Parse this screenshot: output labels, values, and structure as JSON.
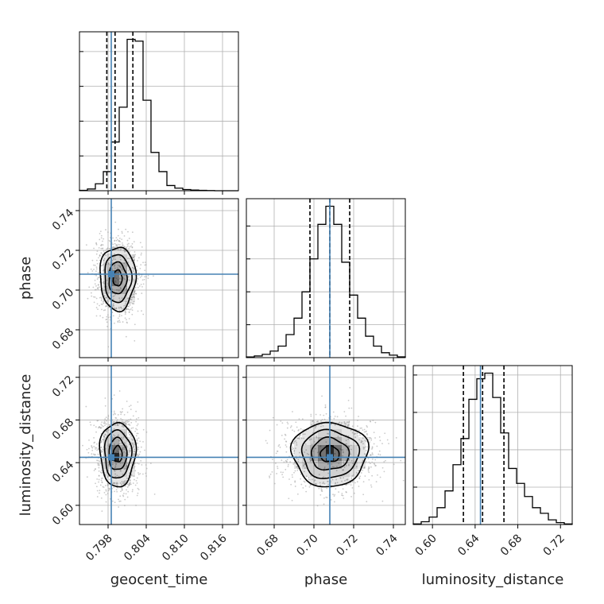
{
  "chart_data": {
    "type": "corner",
    "parameters": [
      {
        "name": "geocent_time",
        "label": "geocent_time",
        "range": [
          0.7935,
          0.8185
        ],
        "ticks": [
          0.798,
          0.804,
          0.81,
          0.816
        ],
        "tick_labels": [
          "0.798",
          "0.804",
          "0.810",
          "0.816"
        ],
        "truth": 0.7985,
        "quantiles": [
          0.7978,
          0.7991,
          0.8019
        ],
        "hist": [
          0.2,
          1,
          4,
          11,
          28,
          48,
          87,
          86,
          52,
          22,
          11,
          3,
          1.5,
          0.7,
          0.4,
          0.2,
          0.1,
          0,
          0,
          0
        ]
      },
      {
        "name": "phase",
        "label": "phase",
        "range": [
          0.666,
          0.746
        ],
        "ticks": [
          0.68,
          0.7,
          0.72,
          0.74
        ],
        "tick_labels": [
          "0.68",
          "0.70",
          "0.72",
          "0.74"
        ],
        "truth": 0.708,
        "quantiles": [
          0.698,
          0.708,
          0.718
        ],
        "hist": [
          0.4,
          1,
          2,
          4,
          7,
          14,
          24,
          40,
          60,
          81,
          92,
          81,
          58,
          38,
          24,
          13,
          7,
          3,
          1.5,
          0.5
        ]
      },
      {
        "name": "luminosity_distance",
        "label": "luminosity_distance",
        "range": [
          0.582,
          0.731
        ],
        "ticks": [
          0.6,
          0.64,
          0.68,
          0.72
        ],
        "tick_labels": [
          "0.60",
          "0.64",
          "0.68",
          "0.72"
        ],
        "truth": 0.645,
        "quantiles": [
          0.629,
          0.647,
          0.667
        ],
        "hist": [
          0.3,
          1.5,
          4,
          9,
          18,
          32,
          46,
          67,
          78,
          81,
          68,
          49,
          30,
          22,
          15,
          9,
          6,
          2.5,
          1,
          0.3
        ]
      }
    ],
    "pairs": [
      {
        "x": "geocent_time",
        "y": "phase",
        "center": [
          0.7995,
          0.706
        ],
        "sigma": [
          0.0014,
          0.008
        ]
      },
      {
        "x": "geocent_time",
        "y": "luminosity_distance",
        "center": [
          0.7995,
          0.648
        ],
        "sigma": [
          0.0014,
          0.015
        ]
      },
      {
        "x": "phase",
        "y": "luminosity_distance",
        "center": [
          0.708,
          0.648
        ],
        "sigma": [
          0.0095,
          0.015
        ]
      }
    ],
    "contour_levels_sigma": [
      0.5,
      1.0,
      1.5,
      2.0
    ],
    "grid": true
  },
  "colors": {
    "truth": "#4682b4",
    "line": "#000000",
    "grid": "#b0b0b0",
    "points": "#9e9e9e",
    "density": "#000000"
  }
}
